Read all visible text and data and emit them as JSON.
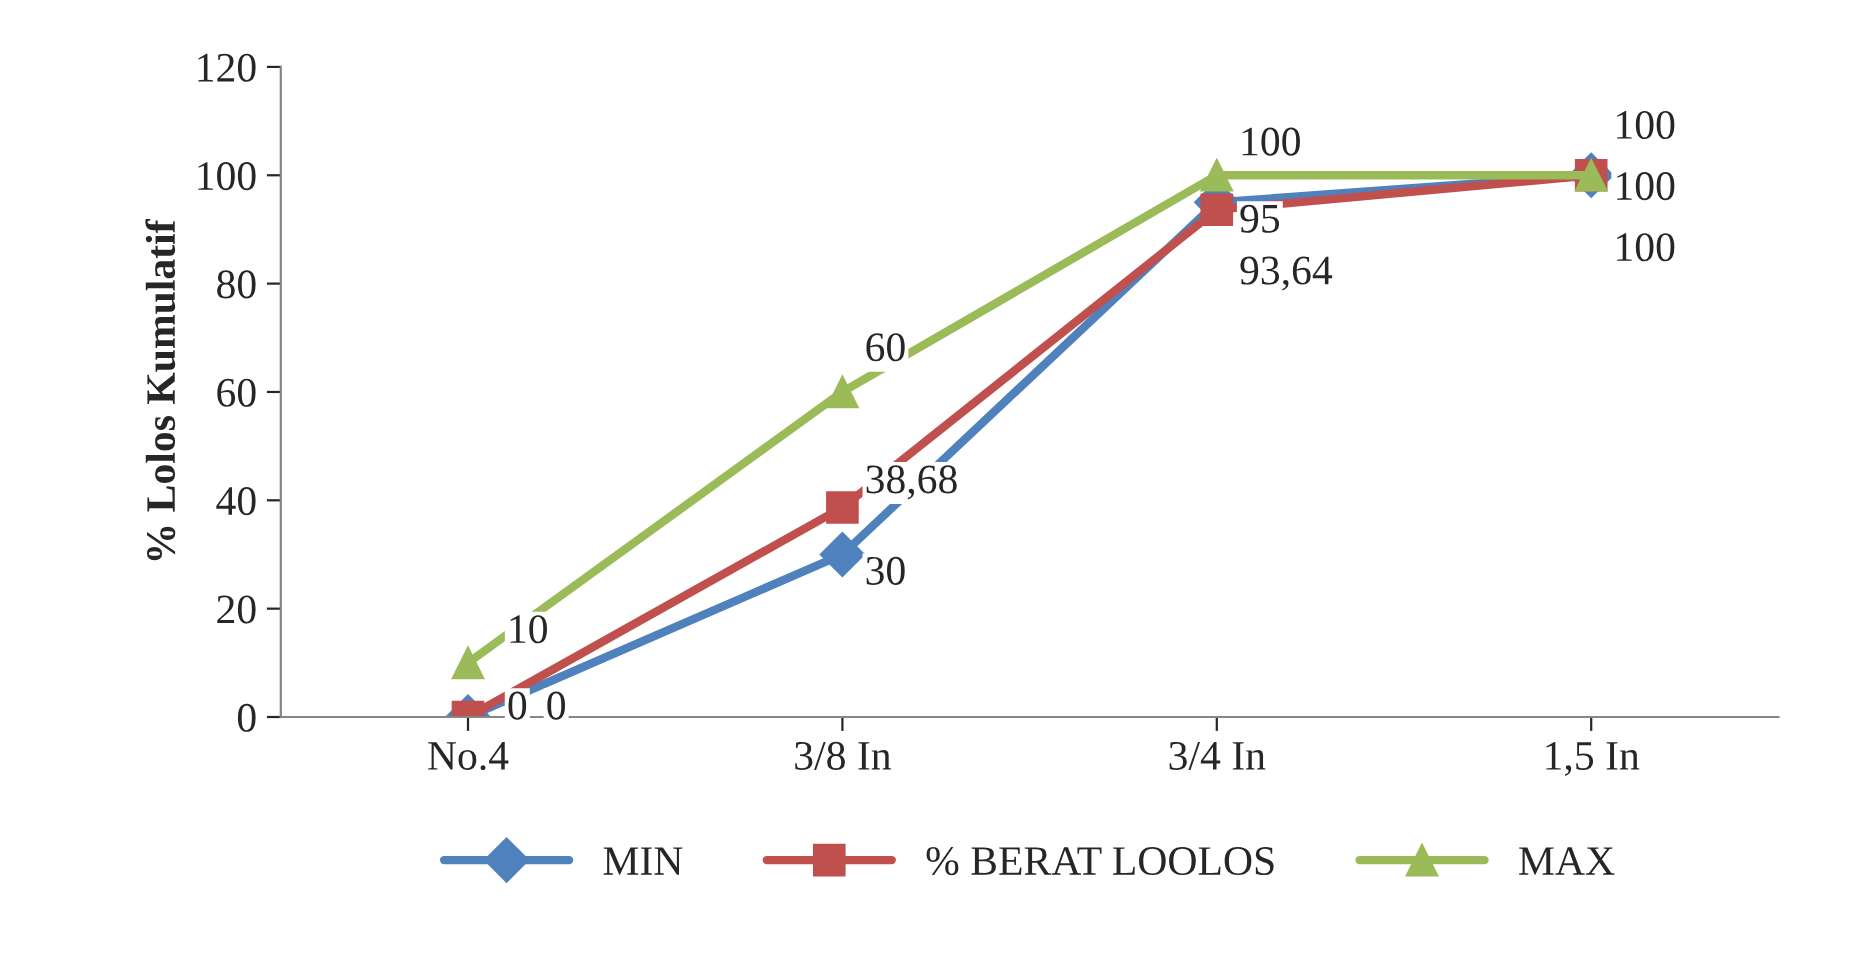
{
  "chart_data": {
    "type": "line",
    "ylabel": "% Lolos Kumulatif",
    "categories": [
      "No.4",
      "3/8 In",
      "3/4 In",
      "1,5 In"
    ],
    "series": [
      {
        "name": "MIN",
        "color": "#4f81bd",
        "marker": "diamond",
        "values": [
          0,
          30,
          95,
          100
        ],
        "value_labels": [
          "0",
          "30",
          "95",
          "100"
        ]
      },
      {
        "name": "% BERAT LOOLOS",
        "color": "#c0504d",
        "marker": "square",
        "values": [
          0,
          38.68,
          93.64,
          100
        ],
        "value_labels": [
          "0",
          "38,68",
          "93,64",
          "100"
        ]
      },
      {
        "name": "MAX",
        "color": "#9bbb59",
        "marker": "triangle",
        "values": [
          10,
          60,
          100,
          100
        ],
        "value_labels": [
          "10",
          "60",
          "100",
          "100"
        ]
      }
    ],
    "ylim": [
      0,
      120
    ],
    "yticks": [
      0,
      20,
      40,
      60,
      80,
      100,
      120
    ],
    "grid": false,
    "legend": "bottom"
  }
}
